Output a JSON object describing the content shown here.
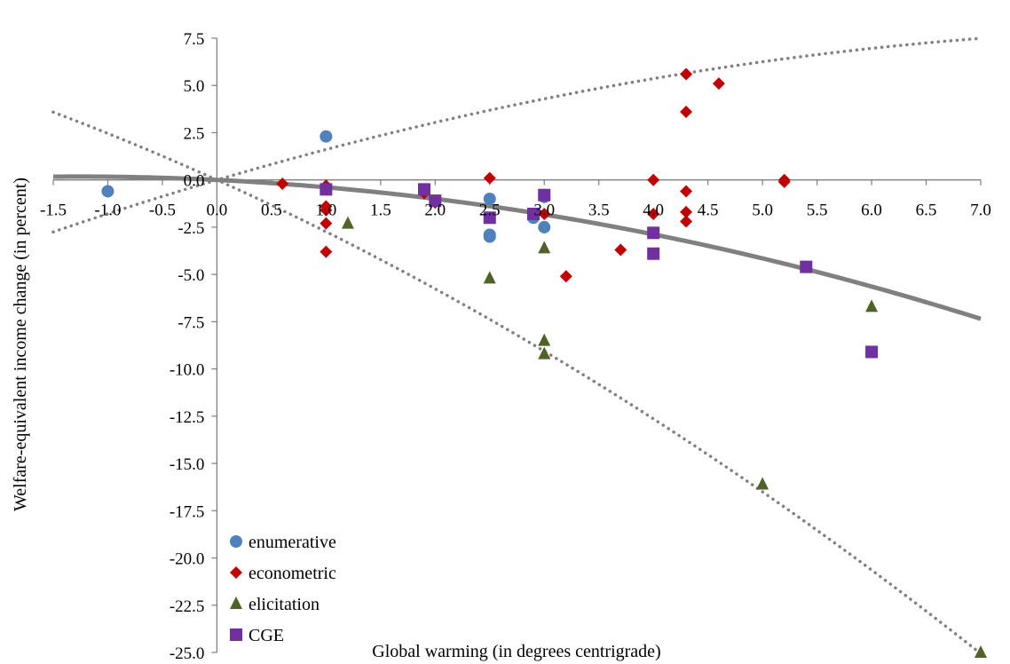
{
  "chart_data": {
    "type": "scatter",
    "xlabel": "Global warming (in degrees centrigrade)",
    "ylabel": "Welfare-equivalent income change (in percent)",
    "xlim": [
      -1.5,
      7.0
    ],
    "ylim": [
      -25.0,
      7.5
    ],
    "x_ticks": [
      "-1.5",
      "-1.0",
      "-0.5",
      "0.0",
      "0.5",
      "1.0",
      "1.5",
      "2.0",
      "2.5",
      "3.0",
      "3.5",
      "4.0",
      "4.5",
      "5.0",
      "5.5",
      "6.0",
      "6.5",
      "7.0"
    ],
    "y_ticks": [
      "7.5",
      "5.0",
      "2.5",
      "0.0",
      "-2.5",
      "-5.0",
      "-7.5",
      "-10.0",
      "-12.5",
      "-15.0",
      "-17.5",
      "-20.0",
      "-22.5",
      "-25.0"
    ],
    "legend_position": "bottom-left",
    "colors": {
      "enumerative": "#4f81bd",
      "econometric": "#c00000",
      "elicitation": "#4f6228",
      "CGE": "#7030a0",
      "fit": "#808080"
    },
    "series": [
      {
        "name": "enumerative",
        "marker": "circle",
        "points": [
          [
            -1.0,
            -0.6
          ],
          [
            1.0,
            2.3
          ],
          [
            2.5,
            -1.0
          ],
          [
            2.5,
            -2.9
          ],
          [
            2.5,
            -3.0
          ],
          [
            2.9,
            -2.0
          ],
          [
            3.0,
            -0.9
          ],
          [
            3.0,
            -2.5
          ]
        ]
      },
      {
        "name": "econometric",
        "marker": "diamond",
        "points": [
          [
            0.6,
            -0.2
          ],
          [
            1.0,
            -0.3
          ],
          [
            1.0,
            -1.4
          ],
          [
            1.0,
            -1.6
          ],
          [
            1.0,
            -2.3
          ],
          [
            1.0,
            -3.8
          ],
          [
            1.9,
            -0.7
          ],
          [
            2.0,
            -1.2
          ],
          [
            2.5,
            0.1
          ],
          [
            3.0,
            -0.8
          ],
          [
            3.0,
            -1.8
          ],
          [
            3.2,
            -5.1
          ],
          [
            3.7,
            -3.7
          ],
          [
            4.0,
            0.0
          ],
          [
            4.0,
            -1.8
          ],
          [
            4.3,
            5.6
          ],
          [
            4.3,
            3.6
          ],
          [
            4.3,
            -0.6
          ],
          [
            4.3,
            -1.7
          ],
          [
            4.3,
            -2.2
          ],
          [
            4.6,
            5.1
          ],
          [
            5.2,
            -0.1
          ],
          [
            5.2,
            0.0
          ]
        ]
      },
      {
        "name": "elicitation",
        "marker": "triangle",
        "points": [
          [
            1.2,
            -2.3
          ],
          [
            2.5,
            -5.2
          ],
          [
            3.0,
            -3.6
          ],
          [
            3.0,
            -8.5
          ],
          [
            3.0,
            -9.2
          ],
          [
            5.0,
            -16.1
          ],
          [
            6.0,
            -6.7
          ],
          [
            7.0,
            -25.0
          ]
        ]
      },
      {
        "name": "CGE",
        "marker": "square",
        "points": [
          [
            1.0,
            -0.5
          ],
          [
            1.9,
            -0.5
          ],
          [
            2.0,
            -1.1
          ],
          [
            2.5,
            -2.0
          ],
          [
            2.9,
            -1.8
          ],
          [
            3.0,
            -0.8
          ],
          [
            4.0,
            -2.8
          ],
          [
            4.0,
            -3.9
          ],
          [
            5.4,
            -4.6
          ],
          [
            6.0,
            -9.1
          ]
        ]
      }
    ],
    "trend_lines": [
      {
        "style": "solid",
        "coefficients": [
          0.0,
          -0.28,
          -0.11
        ]
      },
      {
        "style": "dotted",
        "coefficients": [
          0.0,
          1.7,
          -0.09
        ]
      },
      {
        "style": "dotted",
        "coefficients": [
          0.0,
          -2.6,
          -0.14
        ]
      }
    ]
  }
}
